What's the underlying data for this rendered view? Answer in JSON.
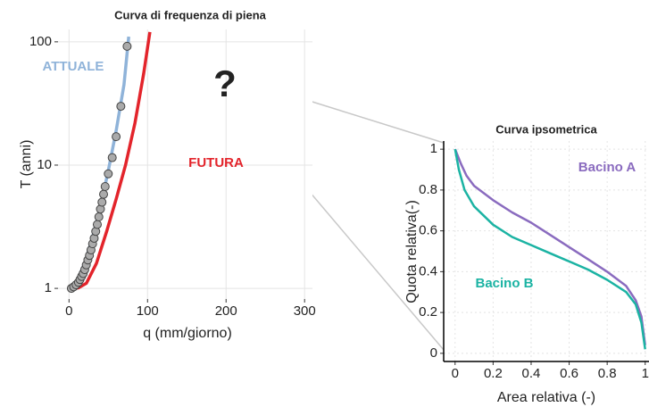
{
  "chart_data": [
    {
      "type": "line",
      "title": "Curva di frequenza di piena",
      "x_label": "q (mm/giorno)",
      "y_label": "T (anni)",
      "xlim": [
        -14,
        310
      ],
      "ylim": [
        0.82,
        126
      ],
      "xticks": [
        0,
        100,
        200,
        300
      ],
      "yticks": [
        1,
        10,
        100
      ],
      "y_scale": "log",
      "grid": true,
      "annotation": "?",
      "series": [
        {
          "name": "ATTUALE",
          "color": "#8fb3d9",
          "x": [
            3,
            10,
            20,
            30,
            40,
            50,
            60,
            70,
            76
          ],
          "values": [
            1,
            1.15,
            1.6,
            2.6,
            4.6,
            9,
            19,
            45,
            110
          ]
        },
        {
          "name": "FUTURA",
          "color": "#e3242b",
          "x": [
            3,
            12,
            22,
            35,
            48,
            60,
            72,
            84,
            95,
            103
          ],
          "values": [
            1,
            1.01,
            1.1,
            1.6,
            2.9,
            5.3,
            10,
            22,
            55,
            120
          ]
        },
        {
          "color": "#aaaaaa",
          "marker": "circle",
          "x": [
            3,
            6,
            9,
            12,
            14,
            16,
            18,
            20,
            22,
            24,
            26,
            28,
            30,
            32,
            34,
            36,
            38,
            40,
            42,
            44,
            46,
            50,
            55,
            60,
            66,
            74
          ],
          "values": [
            1,
            1.03,
            1.07,
            1.12,
            1.18,
            1.25,
            1.32,
            1.42,
            1.55,
            1.7,
            1.85,
            2.05,
            2.3,
            2.55,
            2.9,
            3.3,
            3.8,
            4.4,
            5,
            5.8,
            6.7,
            8.5,
            11.5,
            17,
            30,
            92
          ]
        }
      ]
    },
    {
      "type": "line",
      "title": "Curva ipsometrica",
      "x_label": "Area relativa (-)",
      "y_label": "Quota relativa(-)",
      "xlim": [
        -0.06,
        1.02
      ],
      "ylim": [
        -0.04,
        1.04
      ],
      "xticks": [
        0,
        0.2,
        0.4,
        0.6,
        0.8,
        1
      ],
      "yticks": [
        0,
        0.2,
        0.4,
        0.6,
        0.8,
        1
      ],
      "grid": true,
      "series": [
        {
          "name": "Bacino A",
          "color": "#8a6bbf",
          "x": [
            0,
            0.03,
            0.06,
            0.1,
            0.2,
            0.3,
            0.4,
            0.5,
            0.6,
            0.7,
            0.8,
            0.9,
            0.95,
            0.98,
            1
          ],
          "values": [
            1,
            0.93,
            0.87,
            0.82,
            0.75,
            0.69,
            0.64,
            0.58,
            0.52,
            0.46,
            0.4,
            0.33,
            0.26,
            0.18,
            0.04
          ]
        },
        {
          "name": "Bacino B",
          "color": "#1bb3a3",
          "x": [
            0,
            0.02,
            0.05,
            0.1,
            0.2,
            0.3,
            0.4,
            0.5,
            0.6,
            0.7,
            0.8,
            0.9,
            0.95,
            0.98,
            1
          ],
          "values": [
            1,
            0.9,
            0.8,
            0.72,
            0.63,
            0.57,
            0.53,
            0.49,
            0.45,
            0.41,
            0.36,
            0.3,
            0.24,
            0.15,
            0.02
          ]
        }
      ]
    }
  ]
}
